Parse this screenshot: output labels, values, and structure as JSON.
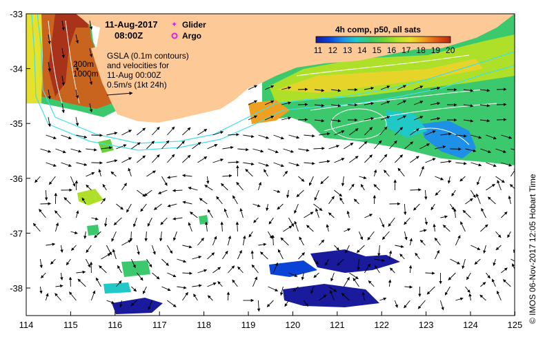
{
  "map": {
    "title_date": "11-Aug-2017",
    "title_time": "08:00Z",
    "legend_glider": "Glider",
    "legend_argo": "Argo",
    "gsla_note": [
      "GSLA (0.1m contours)",
      "and velocities for",
      "11-Aug 00:00Z",
      "0.5m/s (1kt 24h)"
    ],
    "isobath_labels": [
      "200m",
      "1000m"
    ],
    "colorbar": {
      "title": "4h comp, p50, all sats",
      "ticks": [
        "11",
        "12",
        "13",
        "14",
        "15",
        "16",
        "17",
        "18",
        "19",
        "20"
      ],
      "colors": [
        "#1a1a9c",
        "#0a44d6",
        "#1e90e6",
        "#20c8c8",
        "#3cc86c",
        "#68d23a",
        "#aee02a",
        "#e6e12a",
        "#f0a020",
        "#e05a14",
        "#b82810"
      ]
    },
    "lon_ticks": [
      "114",
      "115",
      "116",
      "117",
      "118",
      "119",
      "120",
      "121",
      "122",
      "123",
      "124",
      "125"
    ],
    "lat_ticks": [
      "-33",
      "-34",
      "-35",
      "-36",
      "-37",
      "-38"
    ],
    "credit": "©  IMOS 06-Nov-2017 12:05 Hobart Time",
    "colors": {
      "land": "#fcc997",
      "isobath": "#40e0e8",
      "argo": "#e020e0",
      "glider": "#e020e0"
    }
  }
}
